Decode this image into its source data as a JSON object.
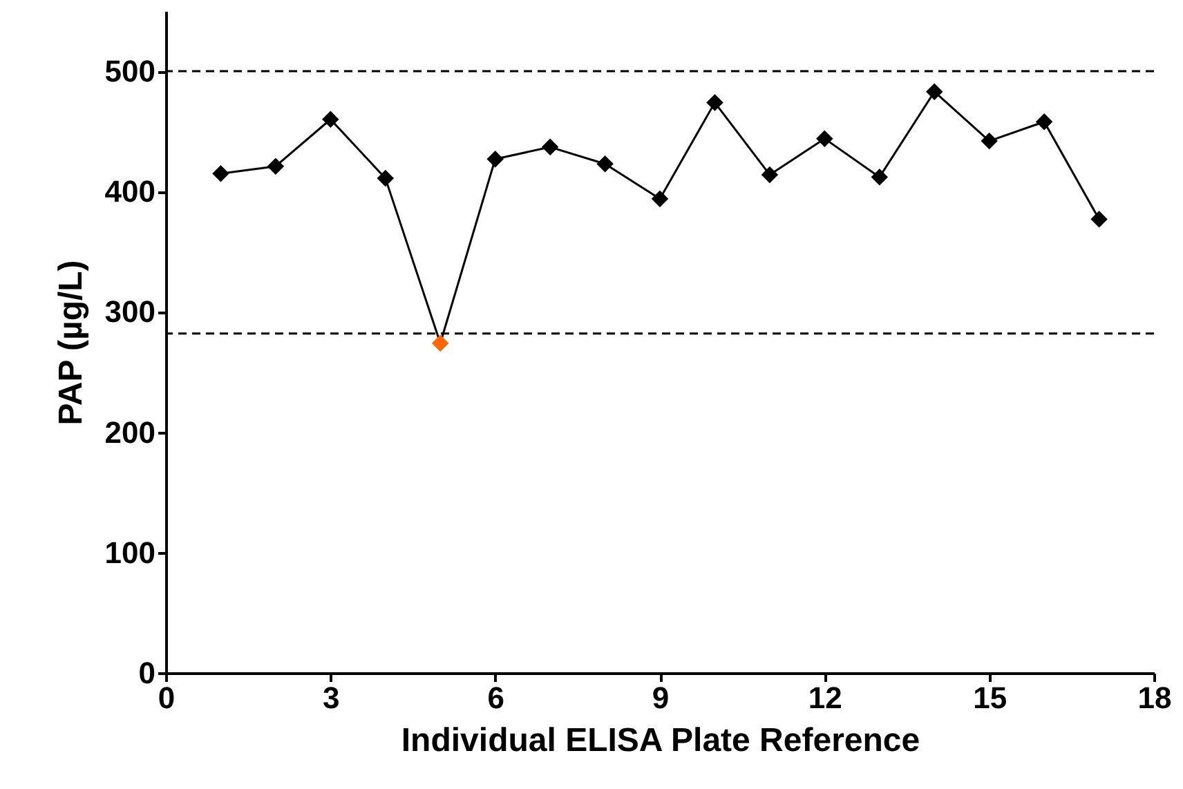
{
  "chart_data": {
    "type": "line",
    "xlabel": "Individual ELISA Plate Reference",
    "ylabel": "PAP (µg/L)",
    "x": [
      1,
      2,
      3,
      4,
      5,
      6,
      7,
      8,
      9,
      10,
      11,
      12,
      13,
      14,
      15,
      16,
      17
    ],
    "series": [
      {
        "color": "#000000",
        "values": [
          415,
          421,
          460,
          411,
          274,
          427,
          437,
          423,
          394,
          474,
          414,
          444,
          412,
          483,
          442,
          458,
          377
        ]
      }
    ],
    "colors": [
      "#000000",
      "#000000",
      "#000000",
      "#000000",
      "#ff6600",
      "#000000",
      "#000000",
      "#000000",
      "#000000",
      "#000000",
      "#000000",
      "#000000",
      "#000000",
      "#000000",
      "#000000",
      "#000000",
      "#000000"
    ],
    "xlim": [
      0,
      18
    ],
    "xticks": [
      0,
      3,
      6,
      9,
      12,
      15,
      18
    ],
    "ylim": [
      0,
      550
    ],
    "yticks": [
      0,
      100,
      200,
      300,
      400,
      500
    ],
    "ref_lines": [
      {
        "axis": "y",
        "value": 500,
        "color": "#000000",
        "line_style": "dashed"
      },
      {
        "axis": "y",
        "value": 282,
        "color": "#000000",
        "line_style": "dashed"
      }
    ],
    "marker": "diamond",
    "line_style": "solid",
    "grid": false
  }
}
